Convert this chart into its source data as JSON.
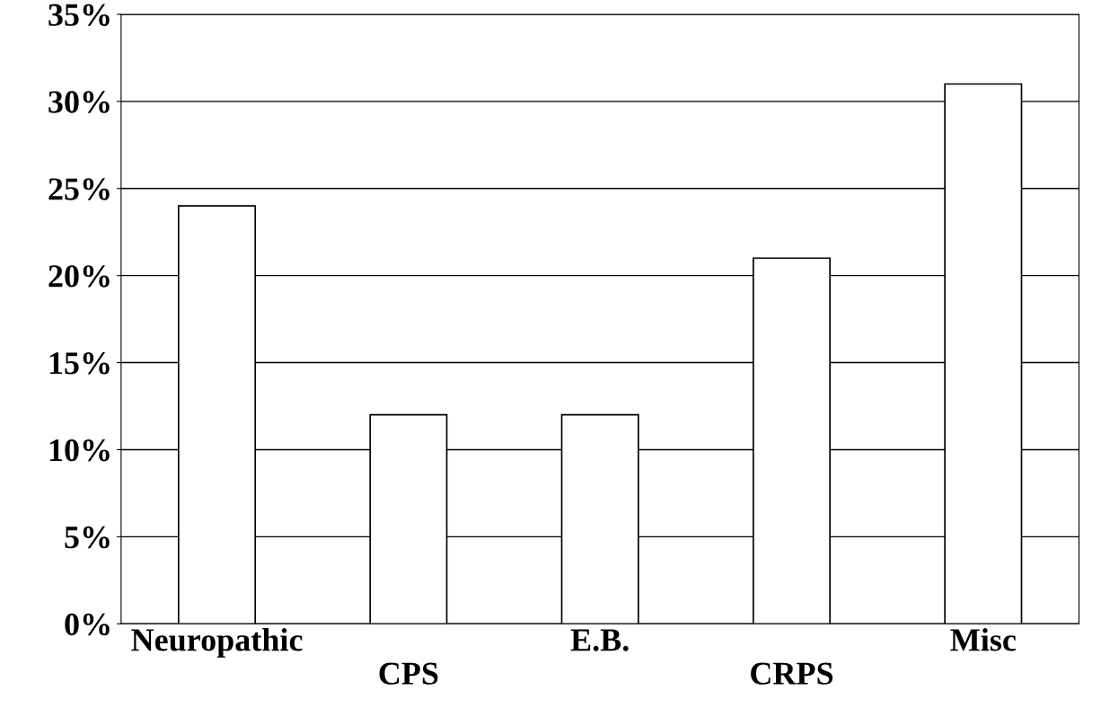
{
  "chart_data": {
    "type": "bar",
    "categories": [
      "Neuropathic",
      "CPS",
      "E.B.",
      "CRPS",
      "Misc"
    ],
    "values": [
      24,
      12,
      12,
      21,
      31
    ],
    "color": "#ffffff",
    "ylim": [
      0,
      35
    ],
    "yticks": [
      {
        "value": 0,
        "label": "0%"
      },
      {
        "value": 5,
        "label": "5%"
      },
      {
        "value": 10,
        "label": "10%"
      },
      {
        "value": 15,
        "label": "15%"
      },
      {
        "value": 20,
        "label": "20%"
      },
      {
        "value": 25,
        "label": "25%"
      },
      {
        "value": 30,
        "label": "30%"
      },
      {
        "value": 35,
        "label": "35%"
      }
    ],
    "grid": "y"
  }
}
